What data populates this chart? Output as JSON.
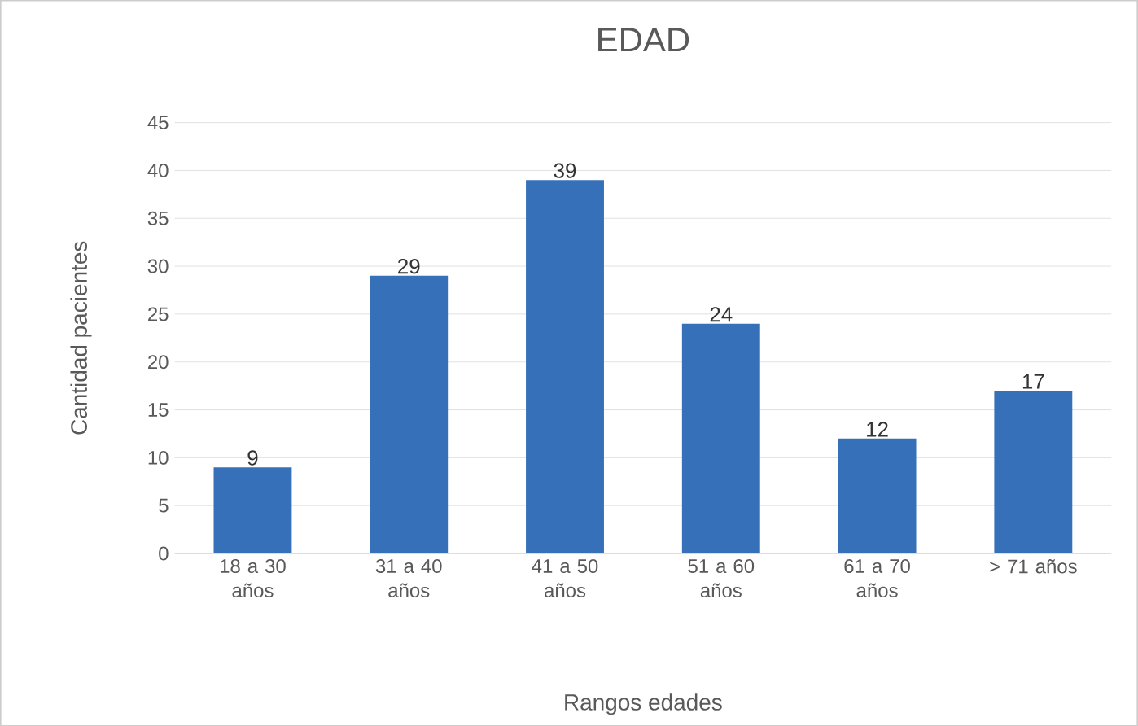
{
  "chart_data": {
    "type": "bar",
    "title": "EDAD",
    "xlabel": "Rangos edades",
    "ylabel": "Cantidad pacientes",
    "categories": [
      "18 a 30 años",
      "31 a 40 años",
      "41 a 50 años",
      "51 a 60 años",
      "61 a 70 años",
      "> 71 años"
    ],
    "values": [
      9,
      29,
      39,
      24,
      12,
      17
    ],
    "color": "#3670b9",
    "ylim": [
      0,
      45
    ],
    "yticks": [
      0,
      5,
      10,
      15,
      20,
      25,
      30,
      35,
      40,
      45
    ],
    "grid": "y",
    "data_labels": true
  }
}
